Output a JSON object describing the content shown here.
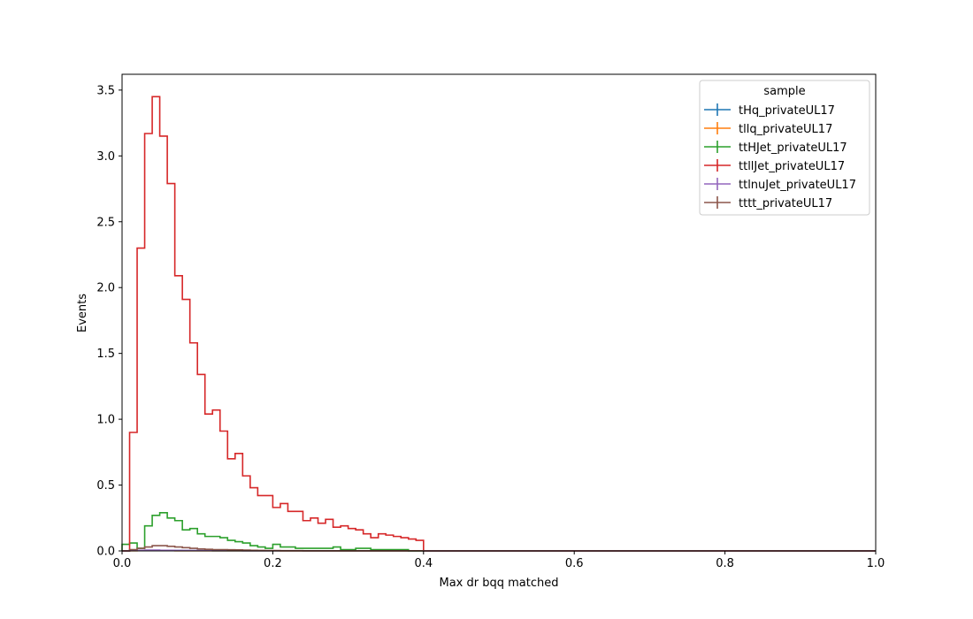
{
  "chart_data": {
    "type": "step",
    "xlabel": "Max dr bqq matched",
    "ylabel": "Events",
    "xlim": [
      0,
      1
    ],
    "ylim": [
      0,
      3.62
    ],
    "xticks": [
      0,
      0.2,
      0.4,
      0.6,
      0.8,
      1.0
    ],
    "xtick_labels": [
      "0.0",
      "0.2",
      "0.4",
      "0.6",
      "0.8",
      "1.0"
    ],
    "yticks": [
      0,
      0.5,
      1.0,
      1.5,
      2.0,
      2.5,
      3.0,
      3.5
    ],
    "ytick_labels": [
      "0.0",
      "0.5",
      "1.0",
      "1.5",
      "2.0",
      "2.5",
      "3.0",
      "3.5"
    ],
    "grid": false,
    "bin_width": 0.01,
    "legend": {
      "title": "sample",
      "placement": "top-right"
    },
    "series": [
      {
        "name": "tHq_privateUL17",
        "color": "#1f77b4",
        "values": [
          0,
          0.002,
          0.003,
          0.004,
          0.004,
          0.004,
          0.003,
          0.003,
          0.002,
          0.002,
          0.002,
          0.002,
          0.001,
          0.001,
          0.001,
          0.001,
          0.001,
          0.001,
          0.001,
          0.001,
          0.001,
          0.001,
          0.001,
          0.001,
          0.001,
          0.001,
          0.001,
          0.001,
          0.001,
          0.001,
          0.001,
          0.001,
          0.001,
          0.001,
          0.001,
          0.001,
          0.001,
          0.001,
          0.001,
          0.001
        ]
      },
      {
        "name": "tllq_privateUL17",
        "color": "#ff7f0e",
        "values": [
          0,
          0.001,
          0.002,
          0.002,
          0.002,
          0.002,
          0.002,
          0.001,
          0.001,
          0.001,
          0.001,
          0.001,
          0.001,
          0.001,
          0.001,
          0.001,
          0.001,
          0.001,
          0.001,
          0.001,
          0.001,
          0,
          0,
          0,
          0,
          0,
          0,
          0,
          0,
          0,
          0,
          0,
          0,
          0,
          0,
          0,
          0,
          0,
          0,
          0
        ]
      },
      {
        "name": "ttHJet_privateUL17",
        "color": "#2ca02c",
        "values": [
          0.05,
          0.06,
          0.02,
          0.19,
          0.27,
          0.29,
          0.25,
          0.23,
          0.16,
          0.17,
          0.13,
          0.11,
          0.11,
          0.1,
          0.08,
          0.07,
          0.06,
          0.04,
          0.03,
          0.02,
          0.05,
          0.03,
          0.03,
          0.02,
          0.02,
          0.02,
          0.02,
          0.02,
          0.03,
          0.01,
          0.01,
          0.02,
          0.02,
          0.01,
          0.01,
          0.01,
          0.01,
          0.01,
          0,
          0
        ]
      },
      {
        "name": "ttllJet_privateUL17",
        "color": "#d62728",
        "values": [
          0,
          0.9,
          2.3,
          3.17,
          3.45,
          3.15,
          2.79,
          2.09,
          1.91,
          1.58,
          1.34,
          1.04,
          1.07,
          0.91,
          0.7,
          0.74,
          0.57,
          0.48,
          0.42,
          0.42,
          0.33,
          0.36,
          0.3,
          0.3,
          0.23,
          0.25,
          0.21,
          0.24,
          0.18,
          0.19,
          0.17,
          0.16,
          0.13,
          0.1,
          0.13,
          0.12,
          0.11,
          0.1,
          0.09,
          0.08
        ]
      },
      {
        "name": "ttlnuJet_privateUL17",
        "color": "#9467bd",
        "values": [
          0,
          0.003,
          0.005,
          0.006,
          0.006,
          0.005,
          0.005,
          0.004,
          0.004,
          0.003,
          0.003,
          0.003,
          0.002,
          0.002,
          0.002,
          0.002,
          0.001,
          0.001,
          0.001,
          0.001,
          0.001,
          0.001,
          0.001,
          0.001,
          0.001,
          0.001,
          0.001,
          0.001,
          0.001,
          0.001,
          0.001,
          0.001,
          0.001,
          0.001,
          0.001,
          0.001,
          0.001,
          0.001,
          0.001,
          0.001
        ]
      },
      {
        "name": "tttt_privateUL17",
        "color": "#8c564b",
        "values": [
          0,
          0.01,
          0.02,
          0.03,
          0.04,
          0.04,
          0.035,
          0.03,
          0.025,
          0.02,
          0.015,
          0.012,
          0.01,
          0.01,
          0.009,
          0.008,
          0.006,
          0.005,
          0.004,
          0.003,
          0.003,
          0.002,
          0.002,
          0.002,
          0.001,
          0.001,
          0.001,
          0.001,
          0.001,
          0.001,
          0.001,
          0.001,
          0.001,
          0.001,
          0.001,
          0.001,
          0.001,
          0.001,
          0.001,
          0.001
        ]
      }
    ]
  }
}
